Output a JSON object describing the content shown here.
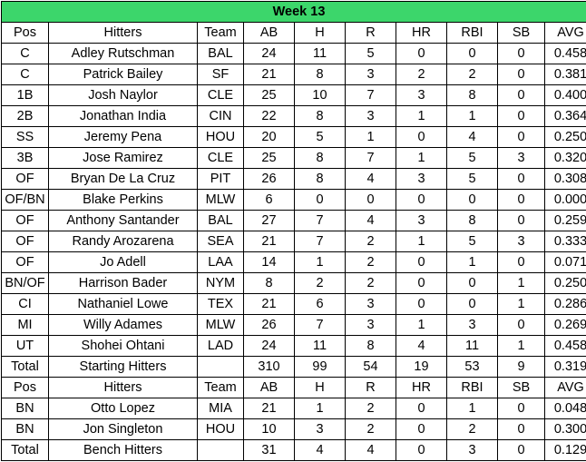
{
  "title": "Week 13",
  "header": [
    "Pos",
    "Hitters",
    "Team",
    "AB",
    "H",
    "R",
    "HR",
    "RBI",
    "SB",
    "AVG"
  ],
  "starters": [
    [
      "C",
      "Adley Rutschman",
      "BAL",
      "24",
      "11",
      "5",
      "0",
      "0",
      "0",
      "0.458"
    ],
    [
      "C",
      "Patrick Bailey",
      "SF",
      "21",
      "8",
      "3",
      "2",
      "2",
      "0",
      "0.381"
    ],
    [
      "1B",
      "Josh Naylor",
      "CLE",
      "25",
      "10",
      "7",
      "3",
      "8",
      "0",
      "0.400"
    ],
    [
      "2B",
      "Jonathan India",
      "CIN",
      "22",
      "8",
      "3",
      "1",
      "1",
      "0",
      "0.364"
    ],
    [
      "SS",
      "Jeremy Pena",
      "HOU",
      "20",
      "5",
      "1",
      "0",
      "4",
      "0",
      "0.250"
    ],
    [
      "3B",
      "Jose Ramirez",
      "CLE",
      "25",
      "8",
      "7",
      "1",
      "5",
      "3",
      "0.320"
    ],
    [
      "OF",
      "Bryan De La Cruz",
      "PIT",
      "26",
      "8",
      "4",
      "3",
      "5",
      "0",
      "0.308"
    ],
    [
      "OF/BN",
      "Blake Perkins",
      "MLW",
      "6",
      "0",
      "0",
      "0",
      "0",
      "0",
      "0.000"
    ],
    [
      "OF",
      "Anthony Santander",
      "BAL",
      "27",
      "7",
      "4",
      "3",
      "8",
      "0",
      "0.259"
    ],
    [
      "OF",
      "Randy Arozarena",
      "SEA",
      "21",
      "7",
      "2",
      "1",
      "5",
      "3",
      "0.333"
    ],
    [
      "OF",
      "Jo Adell",
      "LAA",
      "14",
      "1",
      "2",
      "0",
      "1",
      "0",
      "0.071"
    ],
    [
      "BN/OF",
      "Harrison Bader",
      "NYM",
      "8",
      "2",
      "2",
      "0",
      "0",
      "1",
      "0.250"
    ],
    [
      "CI",
      "Nathaniel Lowe",
      "TEX",
      "21",
      "6",
      "3",
      "0",
      "0",
      "1",
      "0.286"
    ],
    [
      "MI",
      "Willy Adames",
      "MLW",
      "26",
      "7",
      "3",
      "1",
      "3",
      "0",
      "0.269"
    ],
    [
      "UT",
      "Shohei Ohtani",
      "LAD",
      "24",
      "11",
      "8",
      "4",
      "11",
      "1",
      "0.458"
    ]
  ],
  "starters_total": [
    "Total",
    "Starting Hitters",
    "",
    "310",
    "99",
    "54",
    "19",
    "53",
    "9",
    "0.319"
  ],
  "bench_header": [
    "Pos",
    "Hitters",
    "Team",
    "AB",
    "H",
    "R",
    "HR",
    "RBI",
    "SB",
    "AVG"
  ],
  "bench": [
    [
      "BN",
      "Otto Lopez",
      "MIA",
      "21",
      "1",
      "2",
      "0",
      "1",
      "0",
      "0.048"
    ],
    [
      "BN",
      "Jon Singleton",
      "HOU",
      "10",
      "3",
      "2",
      "0",
      "2",
      "0",
      "0.300"
    ]
  ],
  "bench_total": [
    "Total",
    "Bench Hitters",
    "",
    "31",
    "4",
    "4",
    "0",
    "3",
    "0",
    "0.129"
  ],
  "colors": {
    "title_fill": "#3cd66b",
    "grid": "#000000"
  }
}
